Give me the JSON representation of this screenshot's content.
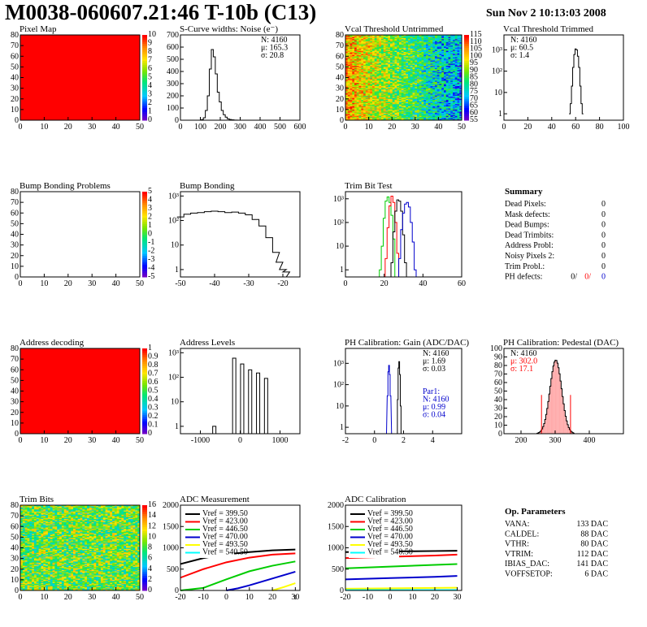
{
  "header": {
    "title": "M0038-060607.21:46 T-10b (C13)",
    "date": "Sun Nov  2 10:13:03 2008"
  },
  "colors": {
    "hist_line": "#000000",
    "map_fill": "#ff0000",
    "red": "#ff0000",
    "green": "#00cc00",
    "blue": "#0000cc",
    "yellow": "#ffff00",
    "cyan": "#00ffff"
  },
  "summary": {
    "title": "Summary",
    "rows": [
      {
        "label": "Dead Pixels:",
        "value": "0"
      },
      {
        "label": "Mask defects:",
        "value": "0"
      },
      {
        "label": "Dead Bumps:",
        "value": "0"
      },
      {
        "label": "Dead Trimbits:",
        "value": "0"
      },
      {
        "label": "Address Probl:",
        "value": "0"
      },
      {
        "label": "Noisy Pixels 2:",
        "value": "0"
      },
      {
        "label": "Trim Probl.:",
        "value": "0"
      }
    ],
    "ph_defects": {
      "label": "PH defects:",
      "v1": "0/",
      "v2": "0/",
      "v3": "0"
    }
  },
  "op_params": {
    "title": "Op. Parameters",
    "rows": [
      {
        "label": "VANA:",
        "value": "133 DAC"
      },
      {
        "label": "CALDEL:",
        "value": "88 DAC"
      },
      {
        "label": "VTHR:",
        "value": "80 DAC"
      },
      {
        "label": "VTRIM:",
        "value": "112 DAC"
      },
      {
        "label": "IBIAS_DAC:",
        "value": "141 DAC"
      },
      {
        "label": "VOFFSETOP:",
        "value": "6 DAC"
      }
    ]
  },
  "chart_data": [
    {
      "id": "pixel_map",
      "type": "heatmap",
      "title": "Pixel Map",
      "xlim": [
        0,
        52
      ],
      "ylim": [
        0,
        80
      ],
      "xticks": [
        "0",
        "10",
        "20",
        "30",
        "40",
        "50"
      ],
      "yticks": [
        "0",
        "10",
        "20",
        "30",
        "40",
        "50",
        "60",
        "70",
        "80"
      ],
      "fill": "uniform red",
      "zlim": [
        0,
        10
      ],
      "palette_ticks": [
        "0",
        "1",
        "2",
        "3",
        "4",
        "5",
        "6",
        "7",
        "8",
        "9",
        "10"
      ]
    },
    {
      "id": "scurve",
      "type": "line",
      "title": "S-Curve widths: Noise (e⁻)",
      "xlim": [
        0,
        600
      ],
      "ylim": [
        0,
        700
      ],
      "xticks": [
        "0",
        "100",
        "200",
        "300",
        "400",
        "500",
        "600"
      ],
      "yticks": [
        "0",
        "100",
        "200",
        "300",
        "400",
        "500",
        "600",
        "700"
      ],
      "stats": [
        "N: 4160",
        "μ: 165.3",
        "σ: 20.8"
      ],
      "x": [
        100,
        110,
        120,
        130,
        140,
        150,
        160,
        170,
        180,
        190,
        200,
        210,
        220,
        230,
        240,
        250,
        260,
        280,
        300
      ],
      "y": [
        0,
        5,
        20,
        80,
        200,
        420,
        580,
        520,
        380,
        230,
        150,
        80,
        45,
        25,
        12,
        6,
        3,
        1,
        0
      ]
    },
    {
      "id": "vcal_untrimmed",
      "type": "heatmap",
      "title": "Vcal Threshold Untrimmed",
      "xlim": [
        0,
        52
      ],
      "ylim": [
        0,
        80
      ],
      "xticks": [
        "0",
        "10",
        "20",
        "30",
        "40",
        "50"
      ],
      "yticks": [
        "0",
        "10",
        "20",
        "30",
        "40",
        "50",
        "60",
        "70",
        "80"
      ],
      "zlim": [
        55,
        115
      ],
      "palette_ticks": [
        "55",
        "60",
        "65",
        "70",
        "75",
        "80",
        "85",
        "90",
        "95",
        "100",
        "105",
        "110",
        "115"
      ],
      "trend": "higher threshold on left, lower on right"
    },
    {
      "id": "vcal_trimmed",
      "type": "line",
      "title": "Vcal Threshold Trimmed",
      "log_y": true,
      "xlim": [
        0,
        100
      ],
      "ylim": [
        0.5,
        5000
      ],
      "xticks": [
        "0",
        "20",
        "40",
        "60",
        "80",
        "100"
      ],
      "yticks": [
        "1",
        "10",
        "10²",
        "10³"
      ],
      "stats": [
        "N: 4160",
        "μ: 60.5",
        "σ: 1.4"
      ],
      "x": [
        55,
        56,
        57,
        58,
        59,
        60,
        61,
        62,
        63,
        64,
        65,
        66
      ],
      "y": [
        1,
        3,
        20,
        150,
        600,
        1100,
        1000,
        500,
        150,
        20,
        3,
        1
      ]
    },
    {
      "id": "bump_problems",
      "type": "heatmap",
      "title": "Bump Bonding Problems",
      "xlim": [
        0,
        52
      ],
      "ylim": [
        0,
        80
      ],
      "xticks": [
        "0",
        "10",
        "20",
        "30",
        "40",
        "50"
      ],
      "yticks": [
        "0",
        "10",
        "20",
        "30",
        "40",
        "50",
        "60",
        "70",
        "80"
      ],
      "fill": "empty",
      "zlim": [
        -5,
        5
      ],
      "palette_ticks": [
        "-5",
        "-4",
        "-3",
        "-2",
        "-1",
        "0",
        "1",
        "2",
        "3",
        "4",
        "5"
      ]
    },
    {
      "id": "bump_bonding",
      "type": "line",
      "title": "Bump Bonding",
      "log_y": true,
      "xlim": [
        -50,
        -15
      ],
      "ylim": [
        0.5,
        1500
      ],
      "xticks": [
        "-50",
        "-40",
        "-30",
        "-20"
      ],
      "yticks": [
        "1",
        "10",
        "10²",
        "10³"
      ],
      "x": [
        -50,
        -48,
        -46,
        -44,
        -42,
        -40,
        -38,
        -36,
        -34,
        -32,
        -30,
        -28,
        -26,
        -24,
        -22,
        -21,
        -20,
        -19,
        -18
      ],
      "y": [
        140,
        180,
        200,
        210,
        230,
        240,
        230,
        210,
        220,
        200,
        170,
        110,
        60,
        20,
        5,
        2,
        1,
        0.8,
        0.5
      ]
    },
    {
      "id": "trim_bit_test",
      "type": "line",
      "title": "Trim Bit Test",
      "log_y": true,
      "xlim": [
        0,
        60
      ],
      "ylim": [
        0.5,
        2000
      ],
      "xticks": [
        "0",
        "20",
        "40",
        "60"
      ],
      "yticks": [
        "1",
        "10",
        "10²",
        "10³"
      ],
      "series": [
        {
          "color": "#00cc00",
          "x": [
            17,
            18,
            19,
            20,
            21,
            22,
            23,
            24,
            25,
            26
          ],
          "y": [
            0.5,
            1,
            10,
            150,
            800,
            1200,
            700,
            200,
            20,
            0.5
          ]
        },
        {
          "color": "#ff0000",
          "x": [
            20,
            21,
            22,
            23,
            24,
            25,
            26,
            27,
            28
          ],
          "y": [
            0.5,
            3,
            60,
            500,
            1300,
            700,
            100,
            5,
            0.5
          ]
        },
        {
          "color": "#000000",
          "x": [
            23,
            24,
            25,
            26,
            27,
            28,
            29,
            30,
            31,
            32
          ],
          "y": [
            0.5,
            2,
            40,
            300,
            900,
            800,
            300,
            30,
            2,
            0.5
          ]
        },
        {
          "color": "#0000cc",
          "x": [
            27,
            28,
            29,
            30,
            31,
            32,
            33,
            34,
            35,
            36,
            37
          ],
          "y": [
            0.5,
            3,
            50,
            250,
            600,
            700,
            450,
            100,
            15,
            1,
            0.5
          ]
        }
      ]
    },
    {
      "id": "address_decoding",
      "type": "heatmap",
      "title": "Address decoding",
      "xlim": [
        0,
        52
      ],
      "ylim": [
        0,
        80
      ],
      "xticks": [
        "0",
        "10",
        "20",
        "30",
        "40",
        "50"
      ],
      "yticks": [
        "0",
        "10",
        "20",
        "30",
        "40",
        "50",
        "60",
        "70",
        "80"
      ],
      "fill": "uniform red",
      "zlim": [
        0,
        1
      ],
      "palette_ticks": [
        "0",
        "0.1",
        "0.2",
        "0.3",
        "0.4",
        "0.5",
        "0.6",
        "0.7",
        "0.8",
        "0.9",
        "1"
      ]
    },
    {
      "id": "address_levels",
      "type": "line",
      "title": "Address Levels",
      "log_y": true,
      "xlim": [
        -1500,
        1500
      ],
      "ylim": [
        0.5,
        1500
      ],
      "xticks": [
        "-1000",
        "0",
        "1000"
      ],
      "yticks": [
        "1",
        "10",
        "10²",
        "10³"
      ],
      "peaks_x": [
        -650,
        -150,
        50,
        250,
        450,
        650
      ],
      "peaks_y": [
        1,
        600,
        350,
        200,
        150,
        90
      ]
    },
    {
      "id": "ph_gain",
      "type": "line",
      "title": "PH Calibration: Gain (ADC/DAC)",
      "log_y": true,
      "xlim": [
        -2,
        6
      ],
      "ylim": [
        0.5,
        5000
      ],
      "xticks": [
        "-2",
        "0",
        "2",
        "4"
      ],
      "yticks": [
        "1",
        "10",
        "10²",
        "10³"
      ],
      "stats": [
        "N: 4160",
        "μ: 1.69",
        "σ: 0.03"
      ],
      "stats2": [
        "Par1:",
        "N: 4160",
        "μ: 0.99",
        "σ: 0.04"
      ],
      "series": [
        {
          "color": "#000000",
          "x": [
            1.55,
            1.6,
            1.65,
            1.7,
            1.75,
            1.8,
            1.85
          ],
          "y": [
            0.5,
            20,
            600,
            1200,
            300,
            10,
            0.5
          ]
        },
        {
          "color": "#0000cc",
          "x": [
            0.8,
            0.9,
            0.95,
            1.0,
            1.05,
            1.1,
            1.2
          ],
          "y": [
            0.5,
            30,
            400,
            800,
            300,
            30,
            0.5
          ]
        }
      ]
    },
    {
      "id": "ph_pedestal",
      "type": "bar",
      "title": "PH Calibration: Pedestal (DAC)",
      "xlim": [
        150,
        500
      ],
      "ylim": [
        0,
        110
      ],
      "xticks": [
        "200",
        "300",
        "400"
      ],
      "yticks": [
        "0",
        "10",
        "20",
        "30",
        "40",
        "50",
        "60",
        "70",
        "80",
        "90",
        "100"
      ],
      "stats": [
        "N: 4160",
        "μ: 302.0",
        "σ: 17.1"
      ],
      "center": 302,
      "sigma": 17.1,
      "peak": 95,
      "cut_lines": [
        260,
        345
      ]
    },
    {
      "id": "trim_bits",
      "type": "heatmap",
      "title": "Trim Bits",
      "xlim": [
        0,
        52
      ],
      "ylim": [
        0,
        80
      ],
      "xticks": [
        "0",
        "10",
        "20",
        "30",
        "40",
        "50"
      ],
      "yticks": [
        "0",
        "10",
        "20",
        "30",
        "40",
        "50",
        "60",
        "70",
        "80"
      ],
      "zlim": [
        0,
        16
      ],
      "palette_ticks": [
        "0",
        "2",
        "4",
        "6",
        "8",
        "10",
        "12",
        "14",
        "16"
      ]
    },
    {
      "id": "adc_measurement",
      "type": "line",
      "title": "ADC Measurement",
      "xlim": [
        -20,
        32
      ],
      "ylim": [
        0,
        2000
      ],
      "xticks": [
        "-20",
        "-10",
        "0",
        "10",
        "20",
        "30"
      ],
      "xlabel": "τ",
      "yticks": [
        "0",
        "500",
        "1000",
        "1500",
        "2000"
      ],
      "series": [
        {
          "name": "Vref = 399.50",
          "color": "#000000",
          "x": [
            -20,
            -10,
            0,
            10,
            20,
            30
          ],
          "y": [
            620,
            760,
            850,
            900,
            940,
            960
          ]
        },
        {
          "name": "Vref = 423.00",
          "color": "#ff0000",
          "x": [
            -20,
            -10,
            0,
            10,
            20,
            30
          ],
          "y": [
            300,
            500,
            660,
            770,
            840,
            870
          ]
        },
        {
          "name": "Vref = 446.50",
          "color": "#00cc00",
          "x": [
            -20,
            -10,
            0,
            10,
            20,
            30
          ],
          "y": [
            0,
            60,
            260,
            450,
            580,
            680
          ]
        },
        {
          "name": "Vref = 470.00",
          "color": "#0000cc",
          "x": [
            0,
            5,
            10,
            20,
            30
          ],
          "y": [
            0,
            50,
            120,
            280,
            440
          ]
        },
        {
          "name": "Vref = 493.50",
          "color": "#ffff00",
          "x": [
            20,
            25,
            30
          ],
          "y": [
            0,
            80,
            170
          ]
        },
        {
          "name": "Vref = 540.50",
          "color": "#00ffff",
          "x": [],
          "y": []
        }
      ]
    },
    {
      "id": "adc_calibration",
      "type": "line",
      "title": "ADC Calibration",
      "xlim": [
        -20,
        32
      ],
      "ylim": [
        0,
        2000
      ],
      "xticks": [
        "-20",
        "-10",
        "0",
        "10",
        "20",
        "30"
      ],
      "yticks": [
        "0",
        "500",
        "1000",
        "1500",
        "2000"
      ],
      "series": [
        {
          "name": "Vref = 399.50",
          "color": "#000000",
          "x": [
            -20,
            0,
            20,
            30
          ],
          "y": [
            900,
            915,
            925,
            930
          ]
        },
        {
          "name": "Vref = 423.00",
          "color": "#ff0000",
          "x": [
            -20,
            0,
            20,
            30
          ],
          "y": [
            760,
            790,
            820,
            840
          ]
        },
        {
          "name": "Vref = 446.50",
          "color": "#00cc00",
          "x": [
            -20,
            0,
            20,
            30
          ],
          "y": [
            520,
            560,
            600,
            620
          ]
        },
        {
          "name": "Vref = 470.00",
          "color": "#0000cc",
          "x": [
            -20,
            0,
            20,
            30
          ],
          "y": [
            260,
            290,
            320,
            340
          ]
        },
        {
          "name": "Vref = 493.50",
          "color": "#ffff00",
          "x": [
            -20,
            0,
            20,
            30
          ],
          "y": [
            40,
            50,
            60,
            65
          ]
        },
        {
          "name": "Vref = 540.50",
          "color": "#00ffff",
          "x": [
            -20,
            0,
            20,
            30
          ],
          "y": [
            10,
            10,
            10,
            10
          ]
        }
      ]
    }
  ]
}
